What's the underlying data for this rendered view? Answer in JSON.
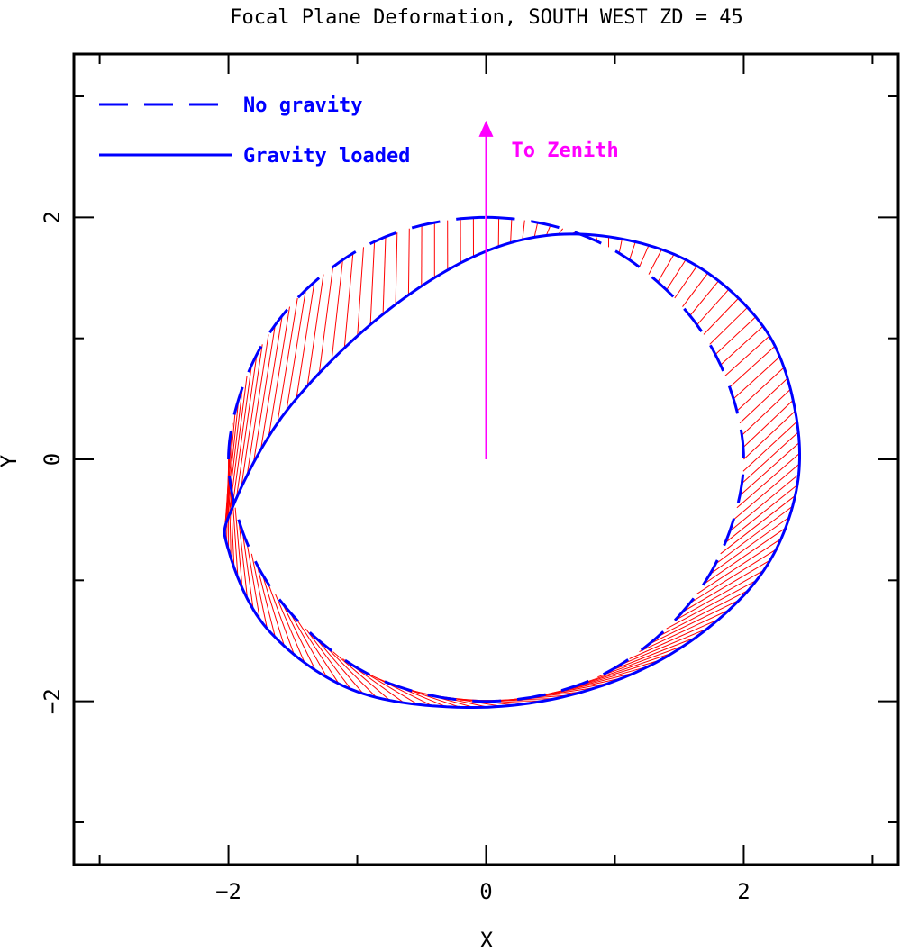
{
  "chart_data": {
    "type": "line",
    "title": "Focal Plane Deformation, SOUTH WEST ZD = 45",
    "xlabel": "X",
    "ylabel": "Y",
    "xlim": [
      -3.2,
      3.2
    ],
    "ylim": [
      -3.35,
      3.35
    ],
    "xticks_major": [
      -2,
      0,
      2
    ],
    "xticks_minor": [
      -3,
      -1,
      1,
      3
    ],
    "yticks_major": [
      -2,
      0,
      2
    ],
    "yticks_minor": [
      -3,
      -1,
      1,
      3
    ],
    "grid": false,
    "legend_position": "top-left",
    "series": [
      {
        "name": "No gravity",
        "style": "dashed",
        "color": "#0000ff",
        "x": [
          0.0,
          0.78,
          1.4,
          1.82,
          2.0,
          1.82,
          1.4,
          0.78,
          0.0,
          -0.78,
          -1.4,
          -1.82,
          -2.0,
          -1.82,
          -1.4,
          -0.78,
          0.0
        ],
        "y": [
          2.0,
          1.84,
          1.4,
          0.78,
          0.0,
          -0.78,
          -1.4,
          -1.84,
          -2.0,
          -1.84,
          -1.4,
          -0.78,
          0.0,
          0.78,
          1.4,
          1.84,
          2.0
        ]
      },
      {
        "name": "Gravity loaded",
        "style": "solid",
        "color": "#0000ff",
        "x": [
          0.0,
          0.75,
          1.55,
          2.15,
          2.4,
          2.4,
          2.1,
          1.45,
          0.65,
          -0.2,
          -1.05,
          -1.7,
          -2.0,
          -1.97,
          -1.55,
          -0.8,
          0.0
        ],
        "y": [
          1.72,
          1.86,
          1.65,
          1.1,
          0.4,
          -0.3,
          -1.0,
          -1.6,
          -1.95,
          -2.05,
          -1.9,
          -1.4,
          -0.75,
          -0.4,
          0.4,
          1.2,
          1.72
        ]
      }
    ],
    "fill_between": {
      "color": "#ff0000",
      "style": "hatched",
      "between": [
        "No gravity",
        "Gravity loaded"
      ]
    },
    "annotations": [
      {
        "text": "To Zenith",
        "color": "#ff00ff",
        "arrow_from": [
          0,
          0
        ],
        "arrow_to": [
          0,
          2.8
        ]
      }
    ]
  },
  "colors": {
    "axes": "#000000",
    "curves": "#0000ff",
    "hatch": "#ff0000",
    "annotation": "#ff00ff"
  }
}
